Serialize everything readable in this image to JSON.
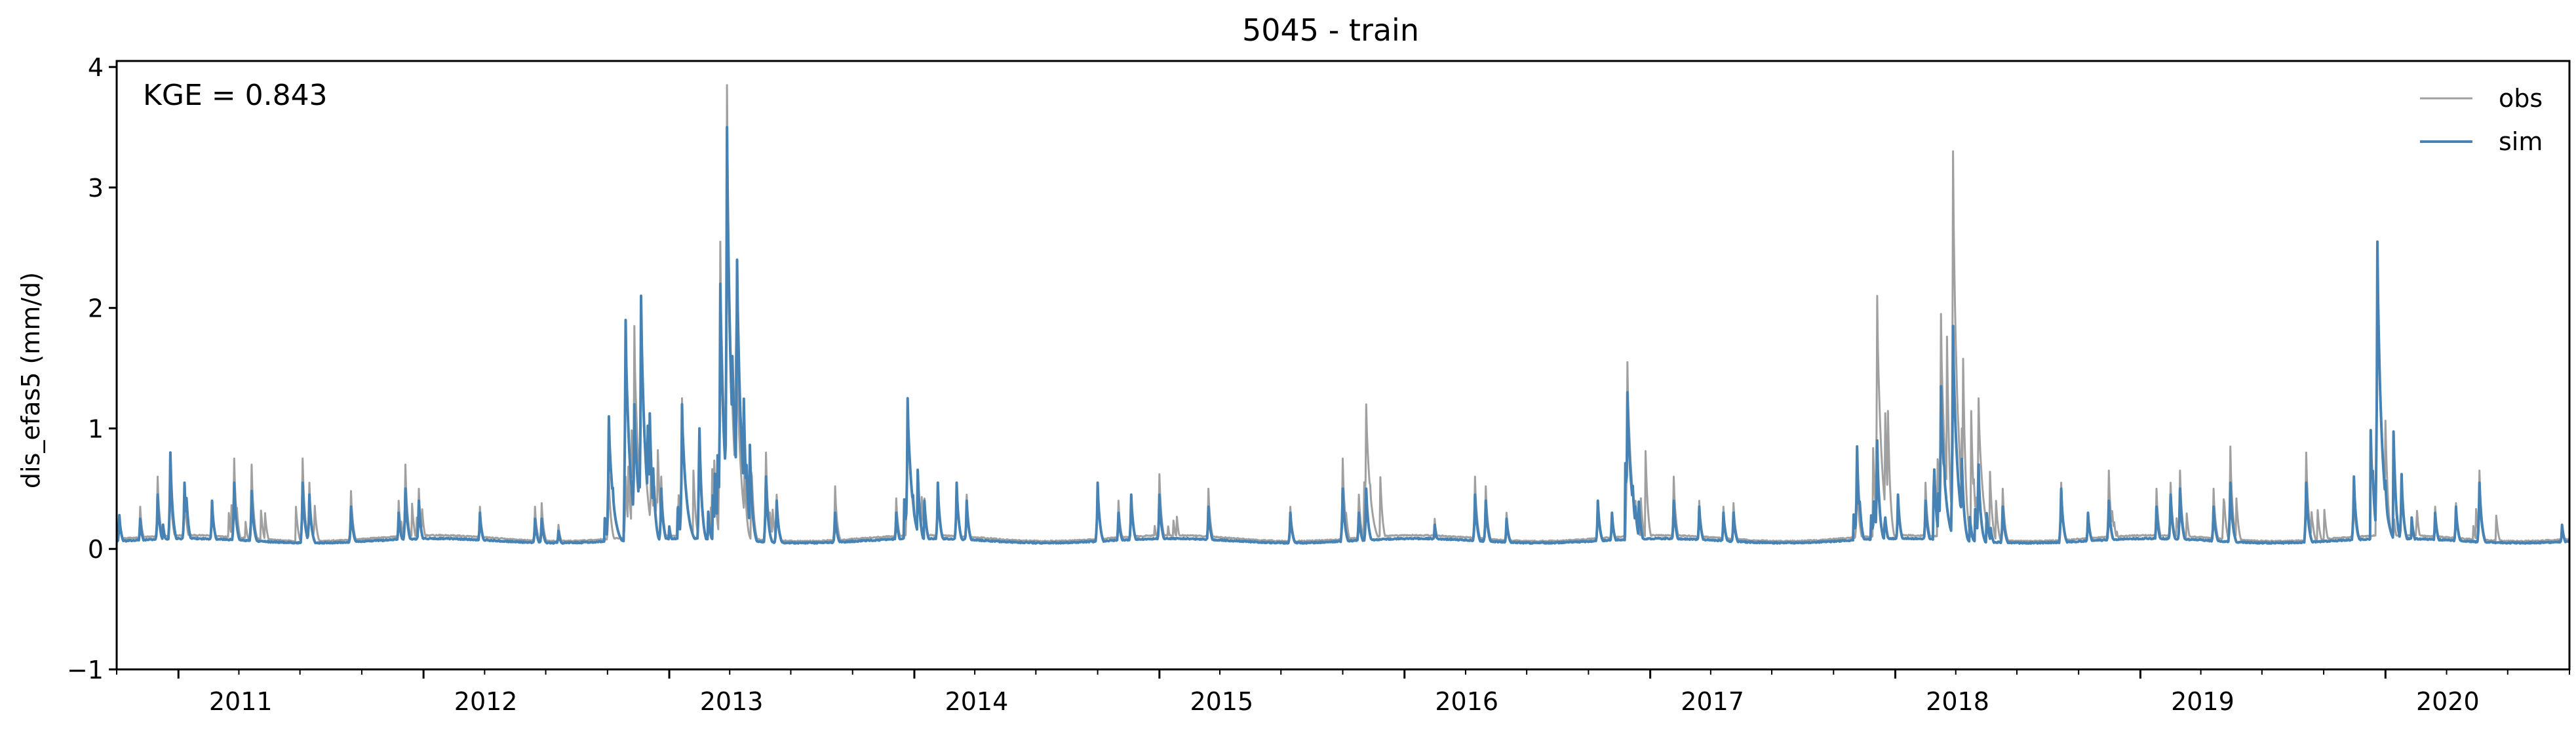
{
  "chart_data": {
    "type": "line",
    "title": "5045 - train",
    "ylabel": "dis_efas5 (mm/d)",
    "xlabel": "",
    "annotation": "KGE = 0.843",
    "ylim": [
      -1,
      4.05
    ],
    "xlim": [
      "2010-10-01",
      "2020-10-01"
    ],
    "yticks": [
      {
        "value": -1,
        "label": "−1"
      },
      {
        "value": 0,
        "label": "0"
      },
      {
        "value": 1,
        "label": "1"
      },
      {
        "value": 2,
        "label": "2"
      },
      {
        "value": 3,
        "label": "3"
      },
      {
        "value": 4,
        "label": "4"
      }
    ],
    "xticks": [
      {
        "date": "2011-01-01",
        "label": "2011"
      },
      {
        "date": "2012-01-01",
        "label": "2012"
      },
      {
        "date": "2013-01-01",
        "label": "2013"
      },
      {
        "date": "2014-01-01",
        "label": "2014"
      },
      {
        "date": "2015-01-01",
        "label": "2015"
      },
      {
        "date": "2016-01-01",
        "label": "2016"
      },
      {
        "date": "2017-01-01",
        "label": "2017"
      },
      {
        "date": "2018-01-01",
        "label": "2018"
      },
      {
        "date": "2019-01-01",
        "label": "2019"
      },
      {
        "date": "2020-01-01",
        "label": "2020"
      }
    ],
    "legend": {
      "placement": "top-right"
    },
    "grid": false,
    "series": [
      {
        "name": "obs",
        "color": "#a0a0a0",
        "baseline": 0.08,
        "peaks": [
          [
            "2010-10-05",
            0.25
          ],
          [
            "2010-11-05",
            0.35
          ],
          [
            "2010-12-01",
            0.6
          ],
          [
            "2010-12-20",
            0.55
          ],
          [
            "2011-01-10",
            0.5
          ],
          [
            "2011-02-20",
            0.4
          ],
          [
            "2011-03-25",
            0.75
          ],
          [
            "2011-04-20",
            0.7
          ],
          [
            "2011-07-05",
            0.75
          ],
          [
            "2011-07-15",
            0.55
          ],
          [
            "2011-09-15",
            0.48
          ],
          [
            "2011-11-25",
            0.4
          ],
          [
            "2011-12-05",
            0.7
          ],
          [
            "2011-12-25",
            0.5
          ],
          [
            "2012-03-25",
            0.35
          ],
          [
            "2012-06-15",
            0.35
          ],
          [
            "2012-06-25",
            0.38
          ],
          [
            "2012-07-20",
            0.2
          ],
          [
            "2012-10-03",
            0.6
          ],
          [
            "2012-10-28",
            0.6
          ],
          [
            "2012-11-10",
            1.85
          ],
          [
            "2012-11-20",
            1.9
          ],
          [
            "2012-12-05",
            0.8
          ],
          [
            "2012-12-20",
            0.6
          ],
          [
            "2013-01-20",
            1.25
          ],
          [
            "2013-02-15",
            0.9
          ],
          [
            "2013-03-18",
            2.55
          ],
          [
            "2013-03-28",
            3.85
          ],
          [
            "2013-04-05",
            1.2
          ],
          [
            "2013-04-12",
            1.5
          ],
          [
            "2013-05-25",
            0.8
          ],
          [
            "2013-06-10",
            0.45
          ],
          [
            "2013-09-05",
            0.52
          ],
          [
            "2013-12-05",
            0.42
          ],
          [
            "2013-12-22",
            1.2
          ],
          [
            "2014-02-05",
            0.5
          ],
          [
            "2014-03-05",
            0.52
          ],
          [
            "2014-03-20",
            0.45
          ],
          [
            "2014-10-01",
            0.55
          ],
          [
            "2014-11-01",
            0.4
          ],
          [
            "2014-11-20",
            0.45
          ],
          [
            "2015-01-01",
            0.62
          ],
          [
            "2015-03-15",
            0.5
          ],
          [
            "2015-07-15",
            0.35
          ],
          [
            "2015-10-01",
            0.75
          ],
          [
            "2015-10-25",
            0.45
          ],
          [
            "2015-11-05",
            1.2
          ],
          [
            "2016-02-15",
            0.25
          ],
          [
            "2016-04-15",
            0.6
          ],
          [
            "2016-05-01",
            0.52
          ],
          [
            "2016-06-01",
            0.3
          ],
          [
            "2016-10-15",
            0.35
          ],
          [
            "2016-11-05",
            0.3
          ],
          [
            "2016-11-28",
            1.55
          ],
          [
            "2016-12-10",
            0.4
          ],
          [
            "2017-02-05",
            0.6
          ],
          [
            "2017-03-15",
            0.4
          ],
          [
            "2017-04-20",
            0.35
          ],
          [
            "2017-05-05",
            0.38
          ],
          [
            "2017-11-05",
            0.6
          ],
          [
            "2017-12-05",
            2.1
          ],
          [
            "2018-01-05",
            0.4
          ],
          [
            "2018-02-15",
            0.55
          ],
          [
            "2018-03-10",
            1.95
          ],
          [
            "2018-03-28",
            3.3
          ],
          [
            "2018-04-10",
            1.0
          ],
          [
            "2018-05-05",
            1.25
          ],
          [
            "2018-06-10",
            0.5
          ],
          [
            "2018-09-05",
            0.55
          ],
          [
            "2018-10-15",
            0.3
          ],
          [
            "2018-11-15",
            0.65
          ],
          [
            "2019-01-25",
            0.5
          ],
          [
            "2019-02-15",
            0.55
          ],
          [
            "2019-03-01",
            0.65
          ],
          [
            "2019-04-20",
            0.5
          ],
          [
            "2019-05-15",
            0.85
          ],
          [
            "2019-09-05",
            0.8
          ],
          [
            "2019-11-15",
            0.45
          ],
          [
            "2019-12-20",
            2.55
          ],
          [
            "2020-01-25",
            0.62
          ],
          [
            "2020-03-15",
            0.35
          ],
          [
            "2020-04-15",
            0.38
          ],
          [
            "2020-05-20",
            0.65
          ],
          [
            "2020-09-20",
            0.2
          ]
        ]
      },
      {
        "name": "sim",
        "color": "#4682b4",
        "baseline": 0.06,
        "peaks": [
          [
            "2010-10-05",
            0.28
          ],
          [
            "2010-11-05",
            0.25
          ],
          [
            "2010-12-01",
            0.45
          ],
          [
            "2010-12-20",
            0.8
          ],
          [
            "2011-01-10",
            0.55
          ],
          [
            "2011-02-20",
            0.4
          ],
          [
            "2011-03-25",
            0.55
          ],
          [
            "2011-04-20",
            0.48
          ],
          [
            "2011-07-05",
            0.55
          ],
          [
            "2011-07-15",
            0.45
          ],
          [
            "2011-09-15",
            0.35
          ],
          [
            "2011-11-25",
            0.3
          ],
          [
            "2011-12-05",
            0.5
          ],
          [
            "2011-12-25",
            0.4
          ],
          [
            "2012-03-25",
            0.3
          ],
          [
            "2012-06-15",
            0.25
          ],
          [
            "2012-06-25",
            0.25
          ],
          [
            "2012-07-20",
            0.15
          ],
          [
            "2012-10-03",
            1.1
          ],
          [
            "2012-10-28",
            1.9
          ],
          [
            "2012-11-10",
            1.2
          ],
          [
            "2012-11-20",
            2.1
          ],
          [
            "2012-12-05",
            0.7
          ],
          [
            "2012-12-20",
            0.5
          ],
          [
            "2013-01-20",
            1.2
          ],
          [
            "2013-02-15",
            1.0
          ],
          [
            "2013-03-18",
            2.2
          ],
          [
            "2013-03-28",
            3.5
          ],
          [
            "2013-04-05",
            1.6
          ],
          [
            "2013-04-12",
            2.4
          ],
          [
            "2013-05-25",
            0.6
          ],
          [
            "2013-06-10",
            0.4
          ],
          [
            "2013-09-05",
            0.3
          ],
          [
            "2013-12-05",
            0.3
          ],
          [
            "2013-12-22",
            1.25
          ],
          [
            "2014-02-05",
            0.55
          ],
          [
            "2014-03-05",
            0.55
          ],
          [
            "2014-03-20",
            0.4
          ],
          [
            "2014-10-01",
            0.55
          ],
          [
            "2014-11-01",
            0.3
          ],
          [
            "2014-11-20",
            0.45
          ],
          [
            "2015-01-01",
            0.45
          ],
          [
            "2015-03-15",
            0.35
          ],
          [
            "2015-07-15",
            0.3
          ],
          [
            "2015-10-01",
            0.5
          ],
          [
            "2015-10-25",
            0.3
          ],
          [
            "2015-11-05",
            0.5
          ],
          [
            "2016-02-15",
            0.2
          ],
          [
            "2016-04-15",
            0.45
          ],
          [
            "2016-05-01",
            0.4
          ],
          [
            "2016-06-01",
            0.25
          ],
          [
            "2016-10-15",
            0.4
          ],
          [
            "2016-11-05",
            0.3
          ],
          [
            "2016-11-28",
            1.3
          ],
          [
            "2016-12-10",
            0.35
          ],
          [
            "2017-02-05",
            0.4
          ],
          [
            "2017-03-15",
            0.35
          ],
          [
            "2017-04-20",
            0.3
          ],
          [
            "2017-05-05",
            0.3
          ],
          [
            "2017-11-05",
            0.85
          ],
          [
            "2017-12-05",
            0.9
          ],
          [
            "2018-01-05",
            0.45
          ],
          [
            "2018-02-15",
            0.4
          ],
          [
            "2018-03-10",
            1.35
          ],
          [
            "2018-03-28",
            1.85
          ],
          [
            "2018-04-10",
            0.7
          ],
          [
            "2018-05-05",
            0.7
          ],
          [
            "2018-06-10",
            0.35
          ],
          [
            "2018-09-05",
            0.5
          ],
          [
            "2018-10-15",
            0.3
          ],
          [
            "2018-11-15",
            0.4
          ],
          [
            "2019-01-25",
            0.35
          ],
          [
            "2019-02-15",
            0.45
          ],
          [
            "2019-03-01",
            0.5
          ],
          [
            "2019-04-20",
            0.35
          ],
          [
            "2019-05-15",
            0.55
          ],
          [
            "2019-09-05",
            0.55
          ],
          [
            "2019-11-15",
            0.6
          ],
          [
            "2019-12-20",
            2.55
          ],
          [
            "2020-01-25",
            0.62
          ],
          [
            "2020-03-15",
            0.3
          ],
          [
            "2020-04-15",
            0.35
          ],
          [
            "2020-05-20",
            0.55
          ],
          [
            "2020-09-20",
            0.2
          ]
        ]
      }
    ]
  }
}
